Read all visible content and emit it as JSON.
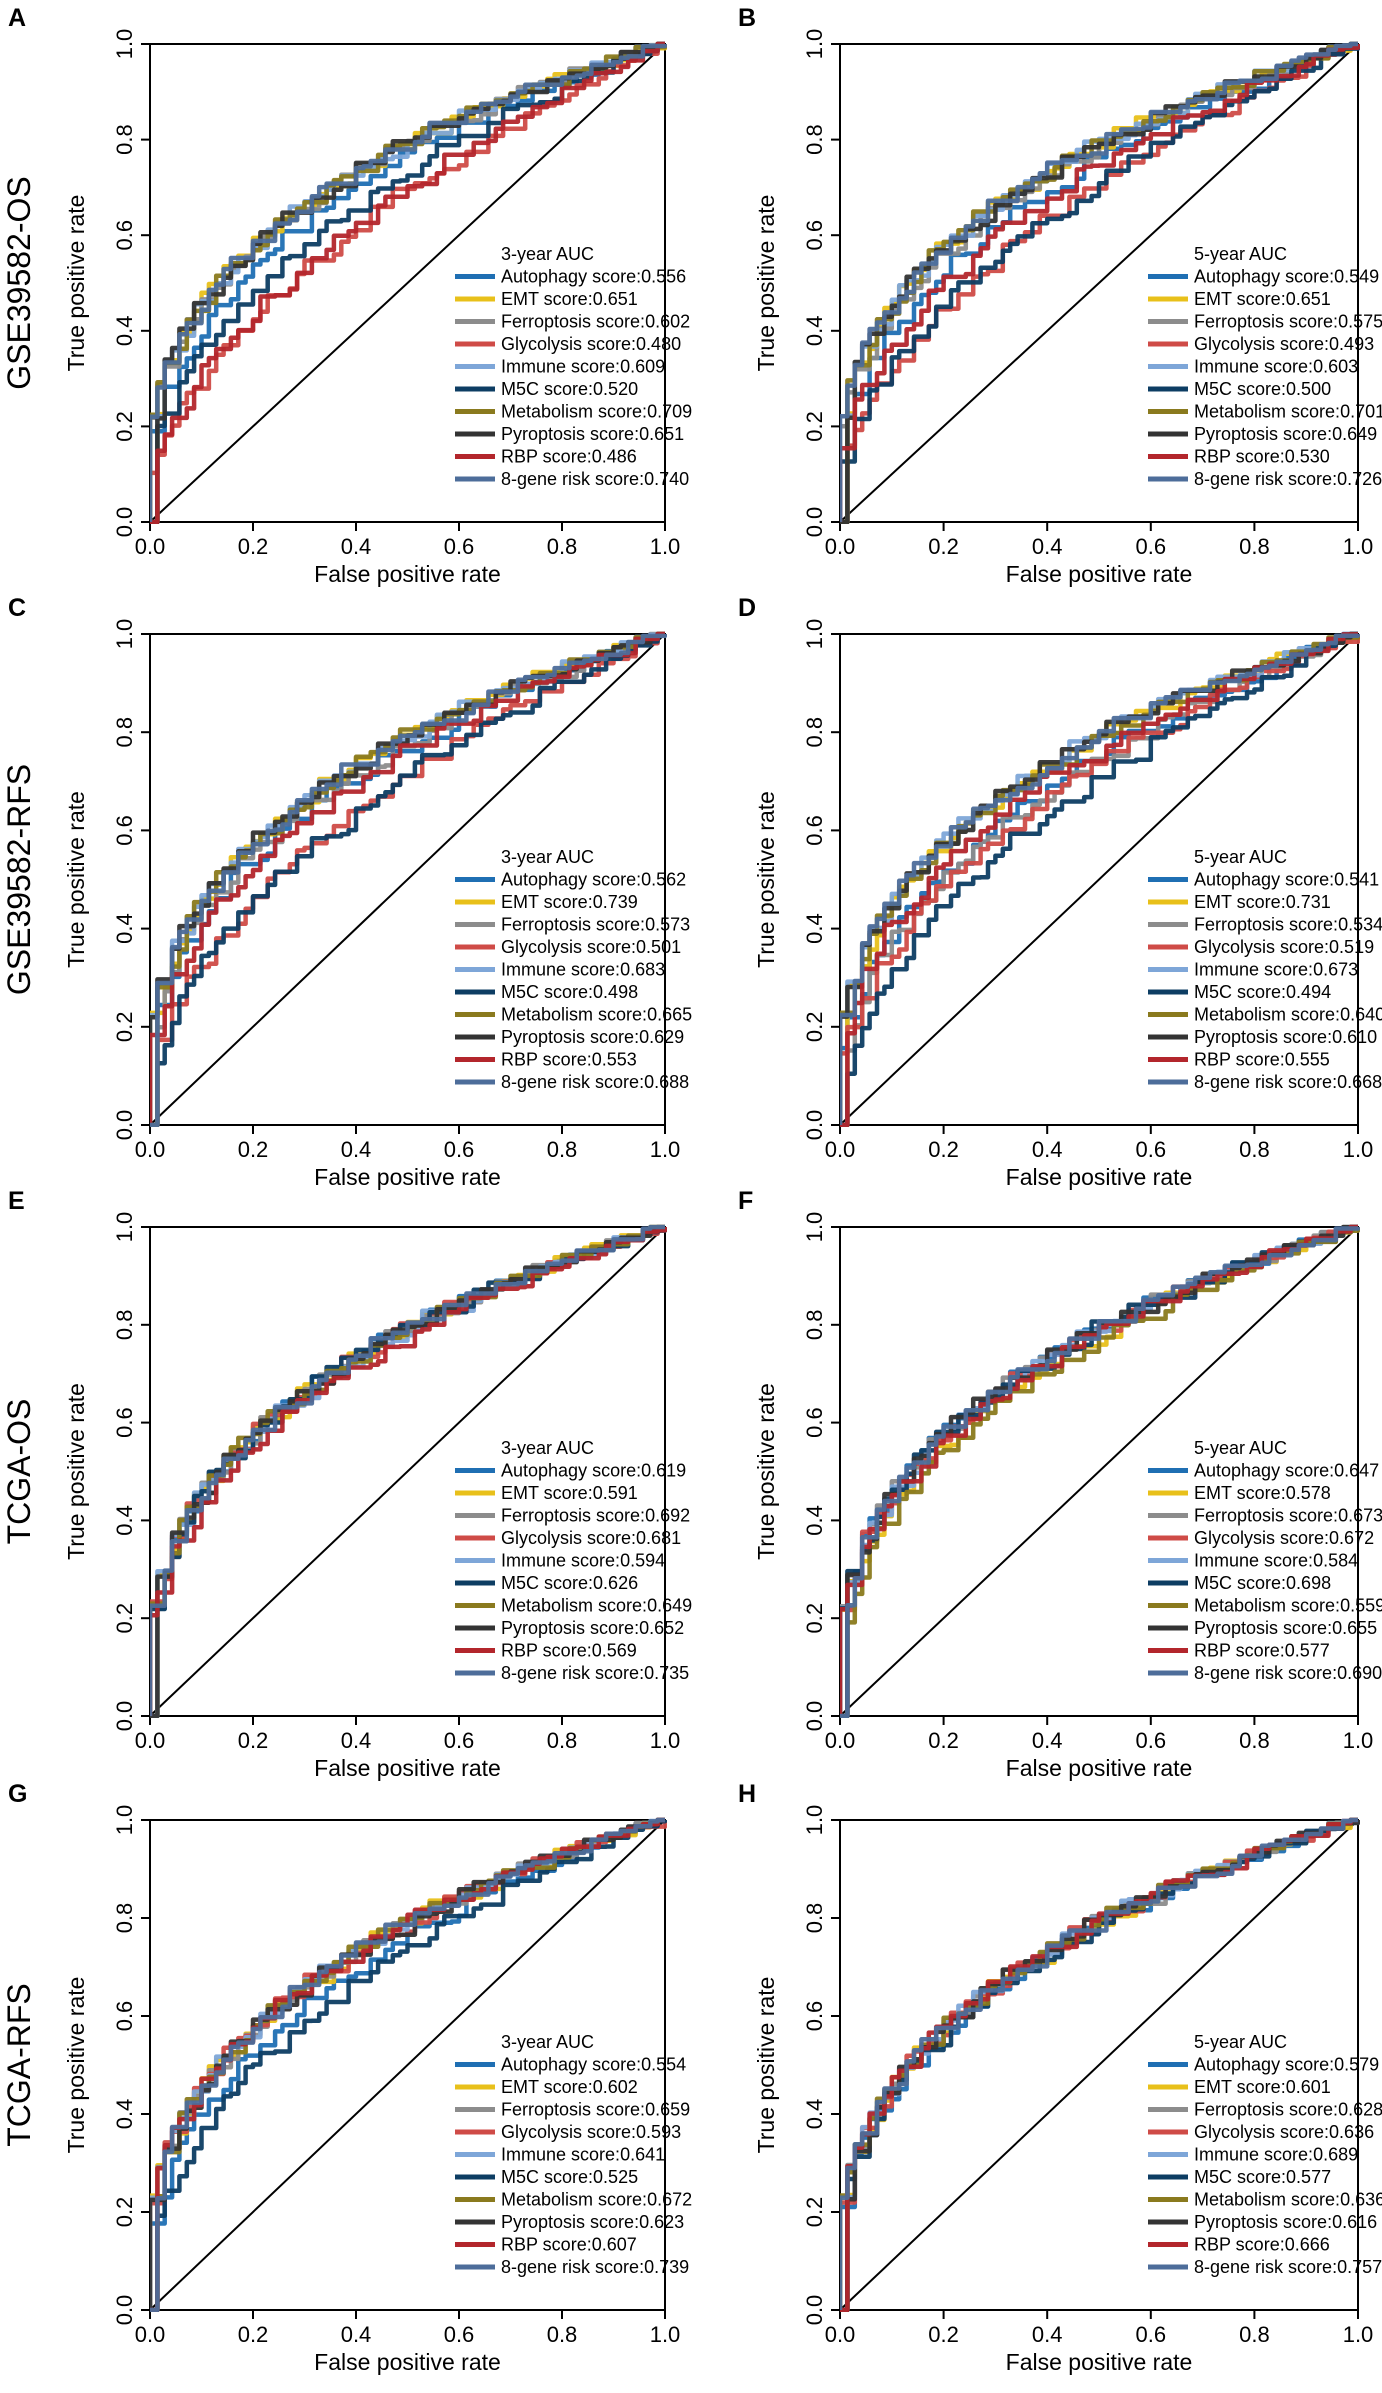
{
  "row_labels": [
    "GSE39582-OS",
    "GSE39582-RFS",
    "TCGA-OS",
    "TCGA-RFS"
  ],
  "series_colors": {
    "Autophagy score": "#1f6fb3",
    "EMT score": "#e8c01a",
    "Ferroptosis score": "#8c8c8c",
    "Glycolysis score": "#cf4b47",
    "Immune score": "#7ea6d8",
    "M5C score": "#0d3d63",
    "Metabolism score": "#8a7a1e",
    "Pyroptosis score": "#333333",
    "RBP score": "#b3262c",
    "8-gene risk score": "#4d6d9a"
  },
  "diagonal_color": "#000000",
  "chart_data": [
    {
      "panel": "A",
      "row": "GSE39582-OS",
      "type": "line",
      "xlabel": "False positive rate",
      "ylabel": "True positive rate",
      "xlim": [
        0,
        1
      ],
      "ylim": [
        0,
        1
      ],
      "xticks": [
        "0.0",
        "0.2",
        "0.4",
        "0.6",
        "0.8",
        "1.0"
      ],
      "yticks": [
        "0.0",
        "0.2",
        "0.4",
        "0.6",
        "0.8",
        "1.0"
      ],
      "legend_title": "3-year AUC",
      "legend_position": "bottom-right",
      "series": [
        {
          "name": "Autophagy score",
          "auc": "0.556"
        },
        {
          "name": "EMT score",
          "auc": "0.651"
        },
        {
          "name": "Ferroptosis score",
          "auc": "0.602"
        },
        {
          "name": "Glycolysis score",
          "auc": "0.480"
        },
        {
          "name": "Immune score",
          "auc": "0.609"
        },
        {
          "name": "M5C score",
          "auc": "0.520"
        },
        {
          "name": "Metabolism score",
          "auc": "0.709"
        },
        {
          "name": "Pyroptosis score",
          "auc": "0.651"
        },
        {
          "name": "RBP score",
          "auc": "0.486"
        },
        {
          "name": "8-gene risk score",
          "auc": "0.740"
        }
      ]
    },
    {
      "panel": "B",
      "row": "GSE39582-OS",
      "type": "line",
      "xlabel": "False positive rate",
      "ylabel": "True positive rate",
      "xlim": [
        0,
        1
      ],
      "ylim": [
        0,
        1
      ],
      "xticks": [
        "0.0",
        "0.2",
        "0.4",
        "0.6",
        "0.8",
        "1.0"
      ],
      "yticks": [
        "0.0",
        "0.2",
        "0.4",
        "0.6",
        "0.8",
        "1.0"
      ],
      "legend_title": "5-year AUC",
      "legend_position": "bottom-right",
      "series": [
        {
          "name": "Autophagy score",
          "auc": "0.549"
        },
        {
          "name": "EMT score",
          "auc": "0.651"
        },
        {
          "name": "Ferroptosis score",
          "auc": "0.575"
        },
        {
          "name": "Glycolysis score",
          "auc": "0.493"
        },
        {
          "name": "Immune score",
          "auc": "0.603"
        },
        {
          "name": "M5C score",
          "auc": "0.500"
        },
        {
          "name": "Metabolism score",
          "auc": "0.701"
        },
        {
          "name": "Pyroptosis score",
          "auc": "0.649"
        },
        {
          "name": "RBP score",
          "auc": "0.530"
        },
        {
          "name": "8-gene risk score",
          "auc": "0.726"
        }
      ]
    },
    {
      "panel": "C",
      "row": "GSE39582-RFS",
      "type": "line",
      "xlabel": "False positive rate",
      "ylabel": "True positive rate",
      "xlim": [
        0,
        1
      ],
      "ylim": [
        0,
        1
      ],
      "xticks": [
        "0.0",
        "0.2",
        "0.4",
        "0.6",
        "0.8",
        "1.0"
      ],
      "yticks": [
        "0.0",
        "0.2",
        "0.4",
        "0.6",
        "0.8",
        "1.0"
      ],
      "legend_title": "3-year AUC",
      "legend_position": "bottom-right",
      "series": [
        {
          "name": "Autophagy score",
          "auc": "0.562"
        },
        {
          "name": "EMT score",
          "auc": "0.739"
        },
        {
          "name": "Ferroptosis score",
          "auc": "0.573"
        },
        {
          "name": "Glycolysis score",
          "auc": "0.501"
        },
        {
          "name": "Immune score",
          "auc": "0.683"
        },
        {
          "name": "M5C score",
          "auc": "0.498"
        },
        {
          "name": "Metabolism score",
          "auc": "0.665"
        },
        {
          "name": "Pyroptosis score",
          "auc": "0.629"
        },
        {
          "name": "RBP score",
          "auc": "0.553"
        },
        {
          "name": "8-gene risk score",
          "auc": "0.688"
        }
      ]
    },
    {
      "panel": "D",
      "row": "GSE39582-RFS",
      "type": "line",
      "xlabel": "False positive rate",
      "ylabel": "True positive rate",
      "xlim": [
        0,
        1
      ],
      "ylim": [
        0,
        1
      ],
      "xticks": [
        "0.0",
        "0.2",
        "0.4",
        "0.6",
        "0.8",
        "1.0"
      ],
      "yticks": [
        "0.0",
        "0.2",
        "0.4",
        "0.6",
        "0.8",
        "1.0"
      ],
      "legend_title": "5-year AUC",
      "legend_position": "bottom-right",
      "series": [
        {
          "name": "Autophagy score",
          "auc": "0.541"
        },
        {
          "name": "EMT score",
          "auc": "0.731"
        },
        {
          "name": "Ferroptosis score",
          "auc": "0.534"
        },
        {
          "name": "Glycolysis score",
          "auc": "0.519"
        },
        {
          "name": "Immune score",
          "auc": "0.673"
        },
        {
          "name": "M5C score",
          "auc": "0.494"
        },
        {
          "name": "Metabolism score",
          "auc": "0.640"
        },
        {
          "name": "Pyroptosis score",
          "auc": "0.610"
        },
        {
          "name": "RBP score",
          "auc": "0.555"
        },
        {
          "name": "8-gene risk score",
          "auc": "0.668"
        }
      ]
    },
    {
      "panel": "E",
      "row": "TCGA-OS",
      "type": "line",
      "xlabel": "False positive rate",
      "ylabel": "True positive rate",
      "xlim": [
        0,
        1
      ],
      "ylim": [
        0,
        1
      ],
      "xticks": [
        "0.0",
        "0.2",
        "0.4",
        "0.6",
        "0.8",
        "1.0"
      ],
      "yticks": [
        "0.0",
        "0.2",
        "0.4",
        "0.6",
        "0.8",
        "1.0"
      ],
      "legend_title": "3-year AUC",
      "legend_position": "bottom-right",
      "series": [
        {
          "name": "Autophagy score",
          "auc": "0.619"
        },
        {
          "name": "EMT score",
          "auc": "0.591"
        },
        {
          "name": "Ferroptosis score",
          "auc": "0.692"
        },
        {
          "name": "Glycolysis score",
          "auc": "0.681"
        },
        {
          "name": "Immune score",
          "auc": "0.594"
        },
        {
          "name": "M5C score",
          "auc": "0.626"
        },
        {
          "name": "Metabolism score",
          "auc": "0.649"
        },
        {
          "name": "Pyroptosis score",
          "auc": "0.652"
        },
        {
          "name": "RBP score",
          "auc": "0.569"
        },
        {
          "name": "8-gene risk score",
          "auc": "0.735"
        }
      ]
    },
    {
      "panel": "F",
      "row": "TCGA-OS",
      "type": "line",
      "xlabel": "False positive rate",
      "ylabel": "True positive rate",
      "xlim": [
        0,
        1
      ],
      "ylim": [
        0,
        1
      ],
      "xticks": [
        "0.0",
        "0.2",
        "0.4",
        "0.6",
        "0.8",
        "1.0"
      ],
      "yticks": [
        "0.0",
        "0.2",
        "0.4",
        "0.6",
        "0.8",
        "1.0"
      ],
      "legend_title": "5-year AUC",
      "legend_position": "bottom-right",
      "series": [
        {
          "name": "Autophagy score",
          "auc": "0.647"
        },
        {
          "name": "EMT score",
          "auc": "0.578"
        },
        {
          "name": "Ferroptosis score",
          "auc": "0.673"
        },
        {
          "name": "Glycolysis score",
          "auc": "0.672"
        },
        {
          "name": "Immune score",
          "auc": "0.584"
        },
        {
          "name": "M5C score",
          "auc": "0.698"
        },
        {
          "name": "Metabolism score",
          "auc": "0.559"
        },
        {
          "name": "Pyroptosis score",
          "auc": "0.655"
        },
        {
          "name": "RBP score",
          "auc": "0.577"
        },
        {
          "name": "8-gene risk score",
          "auc": "0.690"
        }
      ]
    },
    {
      "panel": "G",
      "row": "TCGA-RFS",
      "type": "line",
      "xlabel": "False positive rate",
      "ylabel": "True positive rate",
      "xlim": [
        0,
        1
      ],
      "ylim": [
        0,
        1
      ],
      "xticks": [
        "0.0",
        "0.2",
        "0.4",
        "0.6",
        "0.8",
        "1.0"
      ],
      "yticks": [
        "0.0",
        "0.2",
        "0.4",
        "0.6",
        "0.8",
        "1.0"
      ],
      "legend_title": "3-year AUC",
      "legend_position": "bottom-right",
      "series": [
        {
          "name": "Autophagy score",
          "auc": "0.554"
        },
        {
          "name": "EMT score",
          "auc": "0.602"
        },
        {
          "name": "Ferroptosis score",
          "auc": "0.659"
        },
        {
          "name": "Glycolysis score",
          "auc": "0.593"
        },
        {
          "name": "Immune score",
          "auc": "0.641"
        },
        {
          "name": "M5C score",
          "auc": "0.525"
        },
        {
          "name": "Metabolism score",
          "auc": "0.672"
        },
        {
          "name": "Pyroptosis score",
          "auc": "0.623"
        },
        {
          "name": "RBP score",
          "auc": "0.607"
        },
        {
          "name": "8-gene risk score",
          "auc": "0.739"
        }
      ]
    },
    {
      "panel": "H",
      "row": "TCGA-RFS",
      "type": "line",
      "xlabel": "False positive rate",
      "ylabel": "True positive rate",
      "xlim": [
        0,
        1
      ],
      "ylim": [
        0,
        1
      ],
      "xticks": [
        "0.0",
        "0.2",
        "0.4",
        "0.6",
        "0.8",
        "1.0"
      ],
      "yticks": [
        "0.0",
        "0.2",
        "0.4",
        "0.6",
        "0.8",
        "1.0"
      ],
      "legend_title": "5-year AUC",
      "legend_position": "bottom-right",
      "series": [
        {
          "name": "Autophagy score",
          "auc": "0.579"
        },
        {
          "name": "EMT score",
          "auc": "0.601"
        },
        {
          "name": "Ferroptosis score",
          "auc": "0.628"
        },
        {
          "name": "Glycolysis score",
          "auc": "0.636"
        },
        {
          "name": "Immune score",
          "auc": "0.689"
        },
        {
          "name": "M5C score",
          "auc": "0.577"
        },
        {
          "name": "Metabolism score",
          "auc": "0.636"
        },
        {
          "name": "Pyroptosis score",
          "auc": "0.616"
        },
        {
          "name": "RBP score",
          "auc": "0.666"
        },
        {
          "name": "8-gene risk score",
          "auc": "0.757"
        }
      ]
    }
  ]
}
